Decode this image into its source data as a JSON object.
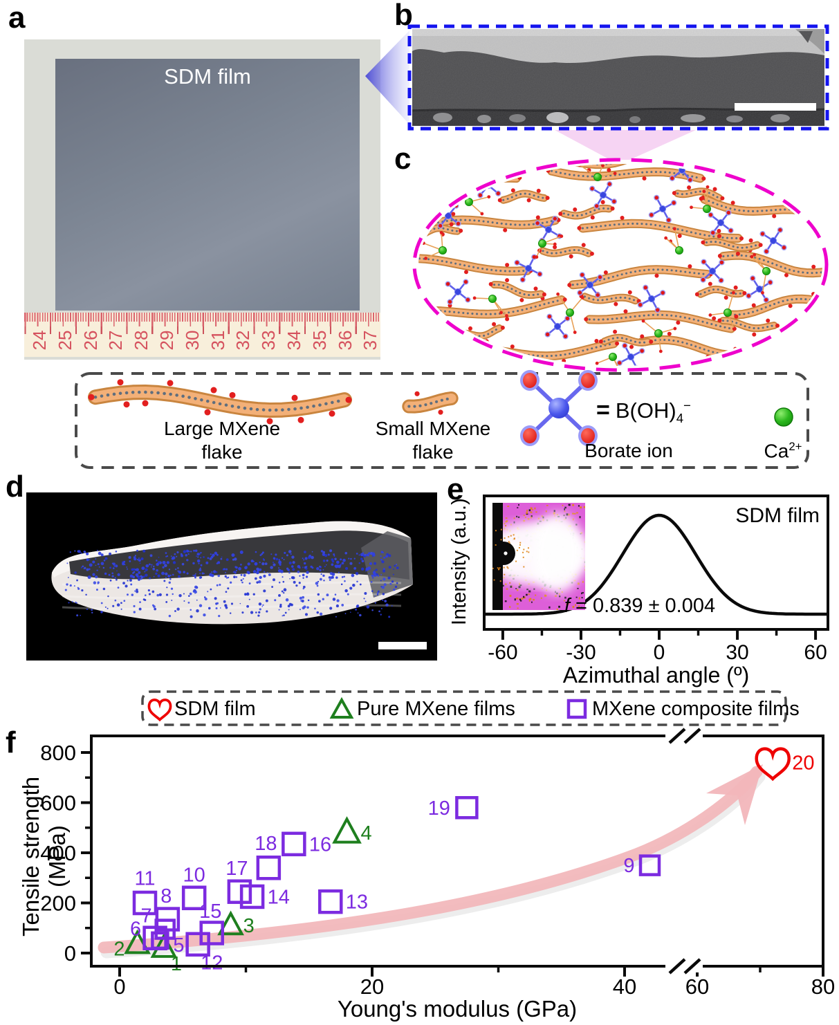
{
  "colors": {
    "blue_border": "#1414ee",
    "magenta": "#ee00cc",
    "purple": "#7c2be0",
    "green": "#1e7f1e",
    "red": "#ee0000",
    "arrow_pink": "#f2b6ba",
    "flake_orange": "#eda766",
    "ruler_red": "#d5525e"
  },
  "panel_a": {
    "label": "a",
    "film_label": "SDM film",
    "ruler_numbers": [
      "24",
      "25",
      "26",
      "27",
      "28",
      "29",
      "30",
      "31",
      "32",
      "33",
      "34",
      "35",
      "36",
      "37"
    ]
  },
  "panel_b": {
    "label": "b"
  },
  "panel_c": {
    "label": "c"
  },
  "legend_box": {
    "large_flake": {
      "line1": "Large MXene",
      "line2": "flake"
    },
    "small_flake": {
      "line1": "Small MXene",
      "line2": "flake"
    },
    "borate": {
      "eq": "=",
      "formula_base": "B(OH)",
      "formula_sub": "4",
      "formula_sup": "−",
      "label": "Borate ion"
    },
    "calcium": {
      "base": "Ca",
      "sup": "2+"
    }
  },
  "panel_d": {
    "label": "d"
  },
  "panel_e": {
    "label": "e",
    "film_label": "SDM film",
    "annotation": {
      "var": "f",
      "rest": " = 0.839 ± 0.004"
    },
    "chart_data": {
      "type": "line",
      "xlabel": "Azimuthal angle (º)",
      "ylabel": "Intensity (a.u.)",
      "x_ticks": [
        -60,
        -30,
        0,
        30,
        60
      ],
      "x_minor_ticks": [
        -45,
        -15,
        15,
        45
      ],
      "xlim": [
        -67,
        65
      ],
      "curve": {
        "shape": "gaussian",
        "center_deg": 0,
        "sigma_deg": 14,
        "peak_intensity": 1.0,
        "baseline": 0.0
      }
    }
  },
  "panel_f": {
    "label": "f",
    "legend": [
      {
        "marker": "heart",
        "color": "#ee0000",
        "label": "SDM film"
      },
      {
        "marker": "triangle",
        "color": "#1e7f1e",
        "label": "Pure MXene films"
      },
      {
        "marker": "square",
        "color": "#7c2be0",
        "label": "MXene composite films"
      }
    ],
    "chart_data": {
      "type": "scatter",
      "xlabel": "Young's modulus (GPa)",
      "ylabel": "Tensile strength (MPa)",
      "x_ticks": [
        0,
        20,
        40,
        60,
        80
      ],
      "x_minor_ticks": [
        10,
        30,
        70
      ],
      "y_ticks": [
        0,
        200,
        400,
        600,
        800
      ],
      "y_minor_ticks": [
        100,
        300,
        500,
        700
      ],
      "x_axis_break_between": [
        44,
        59
      ],
      "series": [
        {
          "name": "SDM film",
          "marker": "heart",
          "color": "#ee0000",
          "points": [
            {
              "n": 20,
              "x": 72,
              "y": 760
            }
          ]
        },
        {
          "name": "Pure MXene films",
          "marker": "triangle",
          "color": "#1e7f1e",
          "points": [
            {
              "n": 1,
              "x": 3.5,
              "y": 20
            },
            {
              "n": 2,
              "x": 1.4,
              "y": 35
            },
            {
              "n": 3,
              "x": 8.8,
              "y": 110
            },
            {
              "n": 4,
              "x": 18,
              "y": 480
            }
          ]
        },
        {
          "name": "MXene composite films",
          "marker": "square",
          "color": "#7c2be0",
          "points": [
            {
              "n": 5,
              "x": 3.2,
              "y": 50
            },
            {
              "n": 6,
              "x": 2.8,
              "y": 60
            },
            {
              "n": 7,
              "x": 3.6,
              "y": 95
            },
            {
              "n": 8,
              "x": 3.8,
              "y": 135
            },
            {
              "n": 9,
              "x": 42,
              "y": 350
            },
            {
              "n": 10,
              "x": 5.9,
              "y": 220
            },
            {
              "n": 11,
              "x": 2,
              "y": 200
            },
            {
              "n": 12,
              "x": 6.2,
              "y": 35
            },
            {
              "n": 13,
              "x": 16.7,
              "y": 205
            },
            {
              "n": 14,
              "x": 10.5,
              "y": 225
            },
            {
              "n": 15,
              "x": 7.3,
              "y": 80
            },
            {
              "n": 16,
              "x": 13.8,
              "y": 435
            },
            {
              "n": 17,
              "x": 9.5,
              "y": 245
            },
            {
              "n": 18,
              "x": 11.8,
              "y": 340
            },
            {
              "n": 19,
              "x": 27.5,
              "y": 580
            }
          ]
        }
      ]
    }
  }
}
